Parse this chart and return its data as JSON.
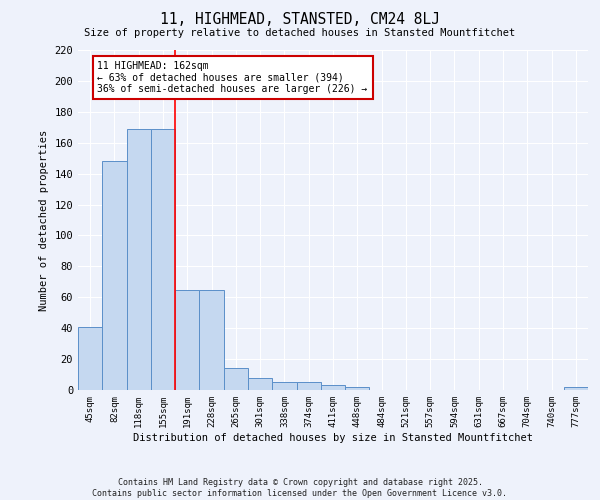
{
  "title": "11, HIGHMEAD, STANSTED, CM24 8LJ",
  "subtitle": "Size of property relative to detached houses in Stansted Mountfitchet",
  "xlabel": "Distribution of detached houses by size in Stansted Mountfitchet",
  "ylabel": "Number of detached properties",
  "categories": [
    "45sqm",
    "82sqm",
    "118sqm",
    "155sqm",
    "191sqm",
    "228sqm",
    "265sqm",
    "301sqm",
    "338sqm",
    "374sqm",
    "411sqm",
    "448sqm",
    "484sqm",
    "521sqm",
    "557sqm",
    "594sqm",
    "631sqm",
    "667sqm",
    "704sqm",
    "740sqm",
    "777sqm"
  ],
  "values": [
    41,
    148,
    169,
    169,
    65,
    65,
    14,
    8,
    5,
    5,
    3,
    2,
    0,
    0,
    0,
    0,
    0,
    0,
    0,
    0,
    2
  ],
  "bar_color": "#c5d8f0",
  "bar_edge_color": "#5b8fc9",
  "background_color": "#eef2fb",
  "grid_color": "#ffffff",
  "red_line_x": 3.5,
  "annotation_line1": "11 HIGHMEAD: 162sqm",
  "annotation_line2": "← 63% of detached houses are smaller (394)",
  "annotation_line3": "36% of semi-detached houses are larger (226) →",
  "annotation_box_color": "#ffffff",
  "annotation_box_edge": "#cc0000",
  "ylim": [
    0,
    220
  ],
  "yticks": [
    0,
    20,
    40,
    60,
    80,
    100,
    120,
    140,
    160,
    180,
    200,
    220
  ],
  "footer": "Contains HM Land Registry data © Crown copyright and database right 2025.\nContains public sector information licensed under the Open Government Licence v3.0."
}
